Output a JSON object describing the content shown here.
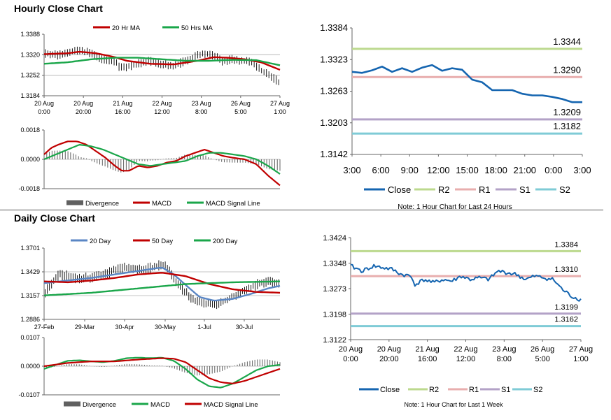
{
  "colors": {
    "red": "#c00000",
    "green": "#1aa64a",
    "blue_ma": "#5a86c4",
    "close": "#1565b0",
    "r2": "#bcd98e",
    "r1": "#e8aeae",
    "s1": "#b3a2c7",
    "s2": "#7fcbd6",
    "gray_bar": "#606060",
    "grid": "#b0b0b0",
    "axis": "#666666"
  },
  "sections": {
    "hourly_title": "Hourly Close Chart",
    "daily_title": "Daily Close Chart"
  },
  "chart_data": [
    {
      "id": "hourly-price",
      "type": "line",
      "title": "Hourly Close Chart",
      "legend": [
        "20 Hr MA",
        "50 Hrs MA"
      ],
      "y_ticks": [
        "1.3388",
        "1.3320",
        "1.3252",
        "1.3184"
      ],
      "ylim": [
        1.3184,
        1.3388
      ],
      "x_ticks": [
        [
          "20 Aug",
          "0:00"
        ],
        [
          "20 Aug",
          "20:00"
        ],
        [
          "21 Aug",
          "16:00"
        ],
        [
          "22 Aug",
          "12:00"
        ],
        [
          "23 Aug",
          "8:00"
        ],
        [
          "26 Aug",
          "5:00"
        ],
        [
          "27 Aug",
          "1:00"
        ]
      ],
      "price_knots": [
        [
          0,
          1.3325
        ],
        [
          0.06,
          1.3318
        ],
        [
          0.1,
          1.333
        ],
        [
          0.13,
          1.3335
        ],
        [
          0.18,
          1.3328
        ],
        [
          0.22,
          1.3315
        ],
        [
          0.26,
          1.33
        ],
        [
          0.3,
          1.33
        ],
        [
          0.32,
          1.3275
        ],
        [
          0.35,
          1.328
        ],
        [
          0.4,
          1.329
        ],
        [
          0.45,
          1.3298
        ],
        [
          0.5,
          1.3288
        ],
        [
          0.55,
          1.3282
        ],
        [
          0.6,
          1.33
        ],
        [
          0.65,
          1.3318
        ],
        [
          0.68,
          1.3325
        ],
        [
          0.72,
          1.3318
        ],
        [
          0.76,
          1.3298
        ],
        [
          0.8,
          1.3305
        ],
        [
          0.84,
          1.33
        ],
        [
          0.88,
          1.3298
        ],
        [
          0.92,
          1.327
        ],
        [
          0.96,
          1.325
        ],
        [
          1.0,
          1.323
        ]
      ],
      "series": [
        {
          "name": "20 Hr MA",
          "color": "red",
          "knots": [
            [
              0,
              1.3322
            ],
            [
              0.1,
              1.3325
            ],
            [
              0.15,
              1.333
            ],
            [
              0.22,
              1.3325
            ],
            [
              0.3,
              1.3312
            ],
            [
              0.35,
              1.33
            ],
            [
              0.45,
              1.329
            ],
            [
              0.55,
              1.3288
            ],
            [
              0.65,
              1.33
            ],
            [
              0.72,
              1.3312
            ],
            [
              0.78,
              1.331
            ],
            [
              0.85,
              1.3305
            ],
            [
              0.92,
              1.3295
            ],
            [
              1.0,
              1.327
            ]
          ]
        },
        {
          "name": "50 Hrs MA",
          "color": "green",
          "knots": [
            [
              0,
              1.329
            ],
            [
              0.1,
              1.3295
            ],
            [
              0.2,
              1.3305
            ],
            [
              0.3,
              1.331
            ],
            [
              0.4,
              1.331
            ],
            [
              0.5,
              1.3305
            ],
            [
              0.6,
              1.33
            ],
            [
              0.7,
              1.33
            ],
            [
              0.8,
              1.3303
            ],
            [
              0.9,
              1.3302
            ],
            [
              1.0,
              1.3285
            ]
          ]
        }
      ]
    },
    {
      "id": "hourly-macd",
      "type": "line",
      "legend": [
        "Divergence",
        "MACD",
        "MACD Signal Line"
      ],
      "y_ticks": [
        "0.0018",
        "0.0000",
        "-0.0018"
      ],
      "ylim": [
        -0.0018,
        0.0018
      ],
      "series": [
        {
          "name": "MACD",
          "color": "red",
          "knots": [
            [
              0,
              0.0003
            ],
            [
              0.03,
              0.0007
            ],
            [
              0.06,
              0.0009
            ],
            [
              0.1,
              0.0011
            ],
            [
              0.14,
              0.0011
            ],
            [
              0.18,
              0.0009
            ],
            [
              0.22,
              0.0005
            ],
            [
              0.26,
              0.0001
            ],
            [
              0.3,
              -0.0004
            ],
            [
              0.33,
              -0.0007
            ],
            [
              0.36,
              -0.0007
            ],
            [
              0.4,
              -0.0004
            ],
            [
              0.44,
              -0.0005
            ],
            [
              0.48,
              -0.0004
            ],
            [
              0.52,
              -0.0002
            ],
            [
              0.56,
              -0.0001
            ],
            [
              0.6,
              0.0002
            ],
            [
              0.64,
              0.0004
            ],
            [
              0.68,
              0.0006
            ],
            [
              0.72,
              0.0004
            ],
            [
              0.76,
              0.0002
            ],
            [
              0.8,
              0.0001
            ],
            [
              0.85,
              0.0
            ],
            [
              0.9,
              -0.0003
            ],
            [
              0.95,
              -0.001
            ],
            [
              1.0,
              -0.0016
            ]
          ]
        },
        {
          "name": "MACD Signal Line",
          "color": "green",
          "knots": [
            [
              0,
              0.0
            ],
            [
              0.05,
              0.0003
            ],
            [
              0.1,
              0.0006
            ],
            [
              0.15,
              0.0009
            ],
            [
              0.2,
              0.0008
            ],
            [
              0.25,
              0.0006
            ],
            [
              0.3,
              0.0003
            ],
            [
              0.35,
              0.0
            ],
            [
              0.4,
              -0.0003
            ],
            [
              0.45,
              -0.0004
            ],
            [
              0.5,
              -0.0003
            ],
            [
              0.55,
              -0.0002
            ],
            [
              0.6,
              -0.0001
            ],
            [
              0.65,
              0.0002
            ],
            [
              0.7,
              0.0004
            ],
            [
              0.75,
              0.0004
            ],
            [
              0.8,
              0.0003
            ],
            [
              0.85,
              0.0002
            ],
            [
              0.9,
              0.0
            ],
            [
              0.95,
              -0.0004
            ],
            [
              1.0,
              -0.0009
            ]
          ]
        }
      ]
    },
    {
      "id": "hourly-close-24h",
      "type": "line",
      "y_ticks": [
        "1.3384",
        "1.3323",
        "1.3263",
        "1.3203",
        "1.3142"
      ],
      "ylim": [
        1.3142,
        1.3384
      ],
      "x_ticks": [
        "3:00",
        "6:00",
        "9:00",
        "12:00",
        "15:00",
        "18:00",
        "21:00",
        "0:00",
        "3:00"
      ],
      "legend": [
        "Close",
        "R2",
        "R1",
        "S1",
        "S2"
      ],
      "levels": [
        {
          "name": "R2",
          "value": 1.3344,
          "label": "1.3344"
        },
        {
          "name": "R1",
          "value": 1.329,
          "label": "1.3290"
        },
        {
          "name": "S1",
          "value": 1.3209,
          "label": "1.3209"
        },
        {
          "name": "S2",
          "value": 1.3182,
          "label": "1.3182"
        }
      ],
      "close": [
        1.33,
        1.3298,
        1.3303,
        1.331,
        1.33,
        1.3307,
        1.33,
        1.3308,
        1.3313,
        1.3302,
        1.3307,
        1.3304,
        1.3285,
        1.328,
        1.3265,
        1.3265,
        1.3265,
        1.3258,
        1.3255,
        1.3255,
        1.3252,
        1.3248,
        1.3242,
        1.3242
      ],
      "note": "Note: 1 Hour Chart for Last 24 Hours"
    },
    {
      "id": "daily-price",
      "type": "line",
      "title": "Daily Close Chart",
      "legend": [
        "20 Day",
        "50 Day",
        "200 Day"
      ],
      "y_ticks": [
        "1.3701",
        "1.3429",
        "1.3157",
        "1.2886"
      ],
      "ylim": [
        1.2886,
        1.3701
      ],
      "x_ticks": [
        "27-Feb",
        "29-Mar",
        "30-Apr",
        "30-May",
        "1-Jul",
        "30-Jul"
      ],
      "price_knots": [
        [
          0,
          1.32
        ],
        [
          0.03,
          1.33
        ],
        [
          0.06,
          1.34
        ],
        [
          0.1,
          1.338
        ],
        [
          0.14,
          1.335
        ],
        [
          0.18,
          1.336
        ],
        [
          0.22,
          1.338
        ],
        [
          0.26,
          1.34
        ],
        [
          0.3,
          1.346
        ],
        [
          0.34,
          1.348
        ],
        [
          0.38,
          1.347
        ],
        [
          0.42,
          1.345
        ],
        [
          0.46,
          1.348
        ],
        [
          0.5,
          1.352
        ],
        [
          0.53,
          1.345
        ],
        [
          0.56,
          1.33
        ],
        [
          0.6,
          1.32
        ],
        [
          0.64,
          1.31
        ],
        [
          0.68,
          1.308
        ],
        [
          0.72,
          1.305
        ],
        [
          0.76,
          1.308
        ],
        [
          0.8,
          1.315
        ],
        [
          0.84,
          1.32
        ],
        [
          0.88,
          1.325
        ],
        [
          0.92,
          1.33
        ],
        [
          0.96,
          1.332
        ],
        [
          1.0,
          1.33
        ]
      ],
      "series": [
        {
          "name": "20 Day",
          "color": "blue_ma",
          "knots": [
            [
              0,
              1.33
            ],
            [
              0.1,
              1.333
            ],
            [
              0.2,
              1.336
            ],
            [
              0.3,
              1.34
            ],
            [
              0.4,
              1.344
            ],
            [
              0.5,
              1.348
            ],
            [
              0.55,
              1.34
            ],
            [
              0.6,
              1.328
            ],
            [
              0.66,
              1.314
            ],
            [
              0.72,
              1.31
            ],
            [
              0.8,
              1.312
            ],
            [
              0.88,
              1.318
            ],
            [
              0.95,
              1.324
            ],
            [
              1.0,
              1.327
            ]
          ]
        },
        {
          "name": "50 Day",
          "color": "red",
          "knots": [
            [
              0,
              1.332
            ],
            [
              0.1,
              1.331
            ],
            [
              0.2,
              1.333
            ],
            [
              0.3,
              1.336
            ],
            [
              0.4,
              1.34
            ],
            [
              0.5,
              1.342
            ],
            [
              0.6,
              1.338
            ],
            [
              0.7,
              1.329
            ],
            [
              0.8,
              1.323
            ],
            [
              0.9,
              1.32
            ],
            [
              1.0,
              1.319
            ]
          ]
        },
        {
          "name": "200 Day",
          "color": "green",
          "knots": [
            [
              0,
              1.316
            ],
            [
              0.2,
              1.319
            ],
            [
              0.4,
              1.324
            ],
            [
              0.6,
              1.329
            ],
            [
              0.8,
              1.331
            ],
            [
              1.0,
              1.332
            ]
          ]
        }
      ]
    },
    {
      "id": "daily-macd",
      "type": "line",
      "legend": [
        "Divergence",
        "MACD",
        "MACD Signal Line"
      ],
      "y_ticks": [
        "0.0107",
        "0.0000",
        "-0.0107"
      ],
      "ylim": [
        -0.0107,
        0.0107
      ],
      "series": [
        {
          "name": "MACD",
          "color": "green",
          "knots": [
            [
              0,
              -0.001
            ],
            [
              0.05,
              0.0005
            ],
            [
              0.1,
              0.002
            ],
            [
              0.15,
              0.0022
            ],
            [
              0.2,
              0.0018
            ],
            [
              0.25,
              0.0015
            ],
            [
              0.3,
              0.002
            ],
            [
              0.35,
              0.003
            ],
            [
              0.4,
              0.0032
            ],
            [
              0.45,
              0.003
            ],
            [
              0.5,
              0.0032
            ],
            [
              0.55,
              0.002
            ],
            [
              0.6,
              -0.001
            ],
            [
              0.65,
              -0.005
            ],
            [
              0.7,
              -0.0075
            ],
            [
              0.75,
              -0.008
            ],
            [
              0.8,
              -0.0065
            ],
            [
              0.85,
              -0.004
            ],
            [
              0.9,
              -0.0015
            ],
            [
              0.95,
              0.0
            ],
            [
              1.0,
              0.0005
            ]
          ]
        },
        {
          "name": "MACD Signal Line",
          "color": "red",
          "knots": [
            [
              0,
              0.0
            ],
            [
              0.1,
              0.0012
            ],
            [
              0.2,
              0.0018
            ],
            [
              0.3,
              0.0018
            ],
            [
              0.4,
              0.0025
            ],
            [
              0.5,
              0.003
            ],
            [
              0.55,
              0.0028
            ],
            [
              0.6,
              0.0015
            ],
            [
              0.65,
              -0.0015
            ],
            [
              0.7,
              -0.0045
            ],
            [
              0.75,
              -0.006
            ],
            [
              0.8,
              -0.0065
            ],
            [
              0.85,
              -0.0055
            ],
            [
              0.9,
              -0.004
            ],
            [
              0.95,
              -0.0025
            ],
            [
              1.0,
              -0.001
            ]
          ]
        }
      ]
    },
    {
      "id": "daily-close-week",
      "type": "line",
      "y_ticks": [
        "1.3424",
        "1.3348",
        "1.3273",
        "1.3198",
        "1.3122"
      ],
      "ylim": [
        1.3122,
        1.3424
      ],
      "x_ticks": [
        [
          "20 Aug",
          "0:00"
        ],
        [
          "20 Aug",
          "20:00"
        ],
        [
          "21 Aug",
          "16:00"
        ],
        [
          "22 Aug",
          "12:00"
        ],
        [
          "23 Aug",
          "8:00"
        ],
        [
          "26 Aug",
          "5:00"
        ],
        [
          "27 Aug",
          "1:00"
        ]
      ],
      "legend": [
        "Close",
        "R2",
        "R1",
        "S1",
        "S2"
      ],
      "levels": [
        {
          "name": "R2",
          "value": 1.3384,
          "label": "1.3384"
        },
        {
          "name": "R1",
          "value": 1.331,
          "label": "1.3310"
        },
        {
          "name": "S1",
          "value": 1.3199,
          "label": "1.3199"
        },
        {
          "name": "S2",
          "value": 1.3162,
          "label": "1.3162"
        }
      ],
      "close_knots": [
        [
          0,
          1.334
        ],
        [
          0.05,
          1.3325
        ],
        [
          0.1,
          1.334
        ],
        [
          0.14,
          1.3335
        ],
        [
          0.18,
          1.333
        ],
        [
          0.22,
          1.3315
        ],
        [
          0.26,
          1.331
        ],
        [
          0.28,
          1.3285
        ],
        [
          0.32,
          1.33
        ],
        [
          0.36,
          1.329
        ],
        [
          0.4,
          1.33
        ],
        [
          0.44,
          1.3295
        ],
        [
          0.48,
          1.331
        ],
        [
          0.52,
          1.33
        ],
        [
          0.56,
          1.3305
        ],
        [
          0.6,
          1.33
        ],
        [
          0.64,
          1.3325
        ],
        [
          0.68,
          1.332
        ],
        [
          0.72,
          1.3315
        ],
        [
          0.76,
          1.33
        ],
        [
          0.8,
          1.331
        ],
        [
          0.84,
          1.3305
        ],
        [
          0.88,
          1.33
        ],
        [
          0.92,
          1.327
        ],
        [
          0.96,
          1.325
        ],
        [
          1.0,
          1.324
        ]
      ],
      "note": "Note: 1 Hour Chart for Last 1 Week"
    }
  ]
}
